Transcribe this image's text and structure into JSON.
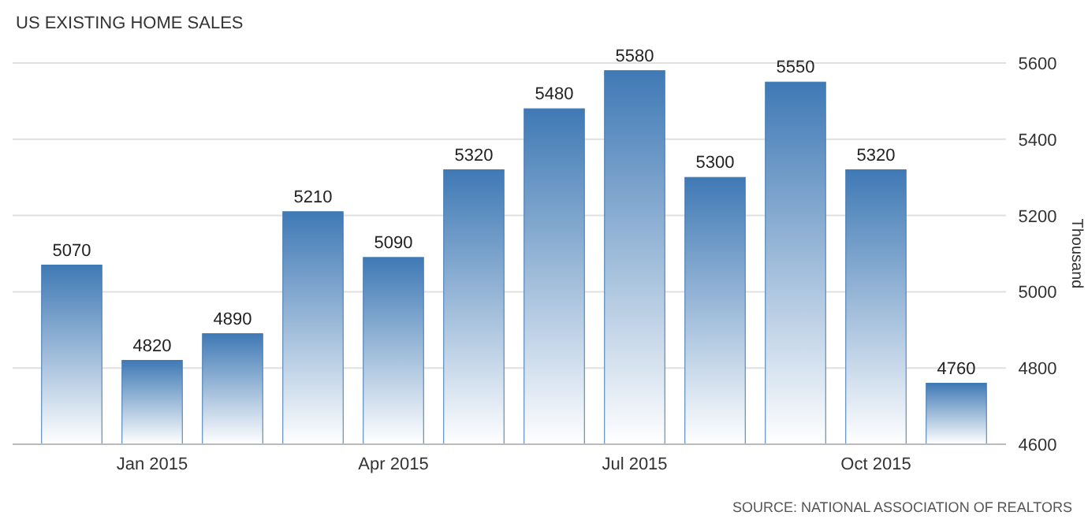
{
  "chart_data": {
    "type": "bar",
    "title": "US EXISTING HOME SALES",
    "ylabel": "Thousand",
    "categories": [
      null,
      "Jan 2015",
      null,
      null,
      "Apr 2015",
      null,
      null,
      "Jul 2015",
      null,
      null,
      "Oct 2015",
      null
    ],
    "values": [
      5070,
      4820,
      4890,
      5210,
      5090,
      5320,
      5480,
      5580,
      5300,
      5550,
      5320,
      4760
    ],
    "color": "#3f79b5",
    "ylim": [
      4600,
      5600
    ],
    "yticks": [
      4600,
      4800,
      5000,
      5200,
      5400,
      5600
    ],
    "grid": "y",
    "data_labels": true,
    "annotations": [
      "SOURCE: NATIONAL ASSOCIATION OF REALTORS"
    ]
  }
}
